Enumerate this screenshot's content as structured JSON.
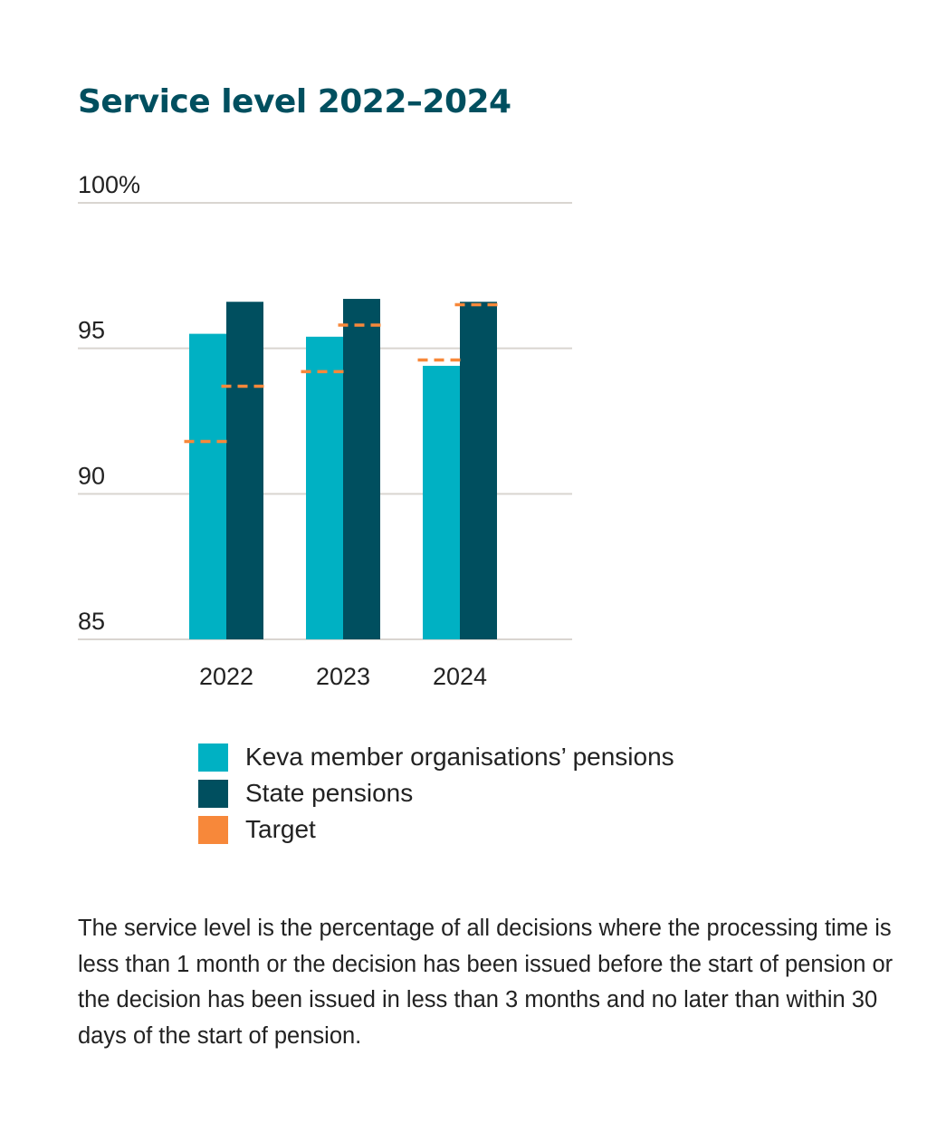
{
  "chart_data": {
    "type": "bar",
    "title": "Service level 2022–2024",
    "categories": [
      "2022",
      "2023",
      "2024"
    ],
    "series": [
      {
        "name": "Keva member organisations’ pensions",
        "values": [
          95.5,
          95.4,
          94.4
        ],
        "color": "#00b1c3"
      },
      {
        "name": "State pensions",
        "values": [
          96.6,
          96.7,
          96.6
        ],
        "color": "#004f5f"
      }
    ],
    "targets": [
      {
        "name": "Target",
        "values": [
          91.8,
          94.2,
          94.6
        ],
        "color": "#f7883a"
      },
      {
        "name": "Target",
        "values": [
          93.7,
          95.8,
          96.5
        ],
        "color": "#f7883a"
      }
    ],
    "ylim": [
      85,
      100
    ],
    "yticks": [
      {
        "value": 100,
        "label": "100%"
      },
      {
        "value": 95,
        "label": "95"
      },
      {
        "value": 90,
        "label": "90"
      },
      {
        "value": 85,
        "label": "85"
      }
    ],
    "xlabel": "",
    "ylabel": "",
    "grid": true,
    "legend": [
      {
        "label": "Keva member organisations’ pensions",
        "color": "#00b1c3"
      },
      {
        "label": "State pensions",
        "color": "#004f5f"
      },
      {
        "label": "Target",
        "color": "#f7883a"
      }
    ],
    "legend_position": "bottom"
  },
  "footnote": "The service level is the percentage of all decisions where the processing time is less than 1 month or the decision has been issued before the start of pension or the decision has been issued in less than 3 months and no later than within 30 days of the start of pension.",
  "colors": {
    "title": "#004f5f",
    "gridline": "#d9d5d0",
    "text": "#222222"
  }
}
